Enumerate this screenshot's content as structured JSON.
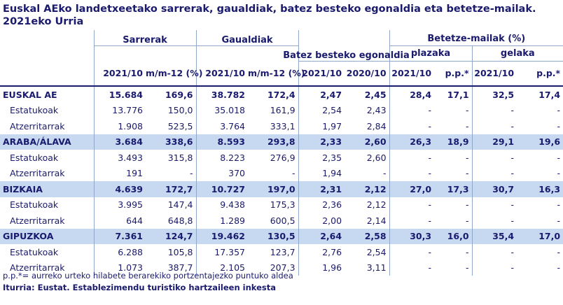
{
  "title": "Euskal AEko landetxeetako sarrerak, gaualdiak, batez besteko egonaldia eta betetze-mailak. 2021eko Urria",
  "headers": {
    "sarrerak": "Sarrerak",
    "gaualdiak": "Gaualdiak",
    "egonaldia": "Batez besteko egonaldia",
    "betetze": "Betetze-mailak (%)",
    "plazaka": "plazaka",
    "gelaka": "gelaka",
    "col_2021_10": "2021/10",
    "col_2020_10": "2020/10",
    "col_mm12": "m/m-12 (%)",
    "col_pp": "p.p.*"
  },
  "rows": [
    {
      "label": "EUSKAL AE",
      "bold": true,
      "shade": false,
      "v": [
        "15.684",
        "169,6",
        "38.782",
        "172,4",
        "2,47",
        "2,45",
        "28,4",
        "17,1",
        "32,5",
        "17,4"
      ]
    },
    {
      "label": "Estatukoak",
      "bold": false,
      "shade": false,
      "v": [
        "13.776",
        "150,0",
        "35.018",
        "161,9",
        "2,54",
        "2,43",
        "-",
        "-",
        "-",
        "-"
      ]
    },
    {
      "label": "Atzerritarrak",
      "bold": false,
      "shade": false,
      "v": [
        "1.908",
        "523,5",
        "3.764",
        "333,1",
        "1,97",
        "2,84",
        "-",
        "-",
        "-",
        "-"
      ]
    },
    {
      "label": "ARABA/ÁLAVA",
      "bold": true,
      "shade": true,
      "v": [
        "3.684",
        "338,6",
        "8.593",
        "293,8",
        "2,33",
        "2,60",
        "26,3",
        "18,9",
        "29,1",
        "19,6"
      ]
    },
    {
      "label": "Estatukoak",
      "bold": false,
      "shade": false,
      "v": [
        "3.493",
        "315,8",
        "8.223",
        "276,9",
        "2,35",
        "2,60",
        "-",
        "-",
        "-",
        "-"
      ]
    },
    {
      "label": "Atzerritarrak",
      "bold": false,
      "shade": false,
      "v": [
        "191",
        "-",
        "370",
        "-",
        "1,94",
        "-",
        "-",
        "-",
        "-",
        "-"
      ]
    },
    {
      "label": "BIZKAIA",
      "bold": true,
      "shade": true,
      "v": [
        "4.639",
        "172,7",
        "10.727",
        "197,0",
        "2,31",
        "2,12",
        "27,0",
        "17,3",
        "30,7",
        "16,3"
      ]
    },
    {
      "label": "Estatukoak",
      "bold": false,
      "shade": false,
      "v": [
        "3.995",
        "147,4",
        "9.438",
        "175,3",
        "2,36",
        "2,12",
        "-",
        "-",
        "-",
        "-"
      ]
    },
    {
      "label": "Atzerritarrak",
      "bold": false,
      "shade": false,
      "v": [
        "644",
        "648,8",
        "1.289",
        "600,5",
        "2,00",
        "2,14",
        "-",
        "-",
        "-",
        "-"
      ]
    },
    {
      "label": "GIPUZKOA",
      "bold": true,
      "shade": true,
      "v": [
        "7.361",
        "124,7",
        "19.462",
        "130,5",
        "2,64",
        "2,58",
        "30,3",
        "16,0",
        "35,4",
        "17,0"
      ]
    },
    {
      "label": "Estatukoak",
      "bold": false,
      "shade": false,
      "v": [
        "6.288",
        "105,8",
        "17.357",
        "123,7",
        "2,76",
        "2,54",
        "-",
        "-",
        "-",
        "-"
      ]
    },
    {
      "label": "Atzerritarrak",
      "bold": false,
      "shade": false,
      "v": [
        "1.073",
        "387,7",
        "2.105",
        "207,3",
        "1,96",
        "3,11",
        "-",
        "-",
        "-",
        "-"
      ]
    }
  ],
  "footnote": "p.p.*= aurreko urteko hilabete berarekiko portzentajezko puntuko aldea",
  "source": "Iturria: Eustat. Establezimendu turistiko hartzaileen inkesta",
  "colors": {
    "text": "#1a1a6e",
    "shade": "#c6d9f0",
    "border": "#8fa8c8"
  }
}
